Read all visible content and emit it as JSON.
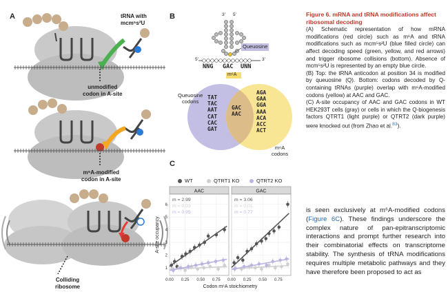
{
  "panels": {
    "a": "A",
    "b": "B",
    "c": "C"
  },
  "panelA": {
    "trna_label_1": "tRNA with",
    "trna_label_2": "mcm⁵s²U",
    "unmod_1": "unmodified",
    "unmod_2": "codon in A-site",
    "m6a_1": "m⁶A-modified",
    "m6a_2": "codon in A-site",
    "coll_1": "Colliding",
    "coll_2": "ribosome"
  },
  "panelB": {
    "prime3": "3'",
    "prime5": "5'",
    "seq_left": "5'",
    "seq_right": "3'",
    "queuosine": "Queuosine",
    "anticodon": "NNG",
    "codon_mid": "GAC",
    "codon_right": "UNN",
    "m6a_tag": "m⁶A",
    "q_codons_1": "Queuosine",
    "q_codons_2": "codons",
    "m6a_codons_1": "m⁶A",
    "m6a_codons_2": "codons",
    "left_codons": [
      "TAT",
      "TAC",
      "AAT",
      "CAT",
      "CAC",
      "GAT"
    ],
    "overlap_codons": [
      "GAC",
      "AAC"
    ],
    "right_codons": [
      "AGA",
      "GAA",
      "GGA",
      "AAA",
      "ACA",
      "ACC",
      "ACT"
    ]
  },
  "chart_data": {
    "type": "scatter",
    "legend": [
      "WT",
      "QTRT1 KO",
      "QTRT2 KO"
    ],
    "legend_position": "top",
    "xlabel": "Codon m⁶A stoichiometry",
    "ylabel": "A-site occupancy",
    "xticks": [
      "0.00",
      "0.25",
      "0.50",
      "0.75"
    ],
    "yticks": [
      "1",
      "2",
      "3",
      "4",
      "5",
      "6"
    ],
    "xlim": [
      0,
      0.95
    ],
    "ylim": [
      0.4,
      6.8
    ],
    "colors": {
      "WT": "#555555",
      "QTRT1 KO": "#cfcfcf",
      "QTRT2 KO": "#b9b4e0"
    },
    "facets": [
      {
        "name": "AAC",
        "slopes": [
          "m = 2.99",
          "m = 0.03",
          "m = 0.95"
        ],
        "series": [
          {
            "name": "WT",
            "x": [
              0.03,
              0.08,
              0.12,
              0.2,
              0.26,
              0.33,
              0.4,
              0.48,
              0.56,
              0.62,
              0.75,
              0.88
            ],
            "y": [
              1.2,
              1.5,
              1.1,
              1.9,
              2.1,
              2.3,
              2.6,
              2.8,
              3.0,
              3.5,
              3.6,
              4.0
            ]
          },
          {
            "name": "QTRT1 KO",
            "x": [
              0.05,
              0.15,
              0.25,
              0.35,
              0.45,
              0.55,
              0.65,
              0.78,
              0.88
            ],
            "y": [
              0.9,
              1.0,
              0.8,
              1.1,
              0.9,
              1.0,
              1.1,
              0.9,
              1.2
            ]
          },
          {
            "name": "QTRT2 KO",
            "x": [
              0.06,
              0.18,
              0.3,
              0.42,
              0.52,
              0.62,
              0.74,
              0.86
            ],
            "y": [
              0.8,
              1.0,
              1.1,
              1.2,
              1.3,
              1.4,
              1.5,
              1.6
            ]
          }
        ]
      },
      {
        "name": "GAC",
        "slopes": [
          "m = 3.06",
          "m = 0.01",
          "m = 0.77"
        ],
        "series": [
          {
            "name": "WT",
            "x": [
              0.04,
              0.1,
              0.18,
              0.25,
              0.32,
              0.4,
              0.48,
              0.55,
              0.6,
              0.68,
              0.76,
              0.9
            ],
            "y": [
              1.4,
              1.8,
              1.6,
              2.3,
              2.5,
              2.9,
              3.1,
              3.3,
              3.7,
              3.9,
              4.2,
              6.0
            ]
          },
          {
            "name": "QTRT1 KO",
            "x": [
              0.06,
              0.16,
              0.28,
              0.38,
              0.48,
              0.6,
              0.7,
              0.8,
              0.9
            ],
            "y": [
              1.0,
              0.9,
              1.1,
              1.0,
              0.9,
              1.2,
              1.0,
              1.1,
              1.3
            ]
          },
          {
            "name": "QTRT2 KO",
            "x": [
              0.05,
              0.2,
              0.32,
              0.44,
              0.56,
              0.66,
              0.78,
              0.88
            ],
            "y": [
              0.9,
              1.1,
              1.2,
              1.3,
              1.2,
              1.5,
              1.6,
              1.7
            ]
          }
        ]
      }
    ]
  },
  "caption": {
    "title": "Figure 6. mRNA and tRNA modifications affect ribosomal decoding",
    "a": "(A) Schematic representation of how mRNA modifications (red circle) such as m⁶A and tRNA modifications such as mcm⁵s²U (blue filled circle) can affect decoding speed (green, yellow, and red arrows) and trigger ribosome collisions (bottom). Absence of mcm⁵s²U is represented by an empty blue circle.",
    "b": "(B) Top: the tRNA anticodon at position 34 is modified by queuosine (Q). Bottom: codons decoded by Q-containing tRNAs (purple) overlap with m⁶A-modified codons (yellow) at AAC and GAC.",
    "c": "(C) A-site occupancy of AAC and GAC codons in WT HEK293T cells (gray) or cells in which the Q-biogenesis factors QTRT1 (light purple) or QTRT2 (dark purple) were knocked out (from Zhao et al.",
    "c_ref": "83",
    "c_end": ")."
  },
  "body": {
    "pre": "is seen exclusively at m⁶A-modified codons (",
    "link": "Figure 6C",
    "post": "). These findings underscore the complex nature of pan-epitranscriptomic interactions and prompt further research into their combinatorial effects on transcriptome stability. The synthesis of tRNA modifications requires multiple metabolic pathways and they have therefore been proposed to act as"
  }
}
